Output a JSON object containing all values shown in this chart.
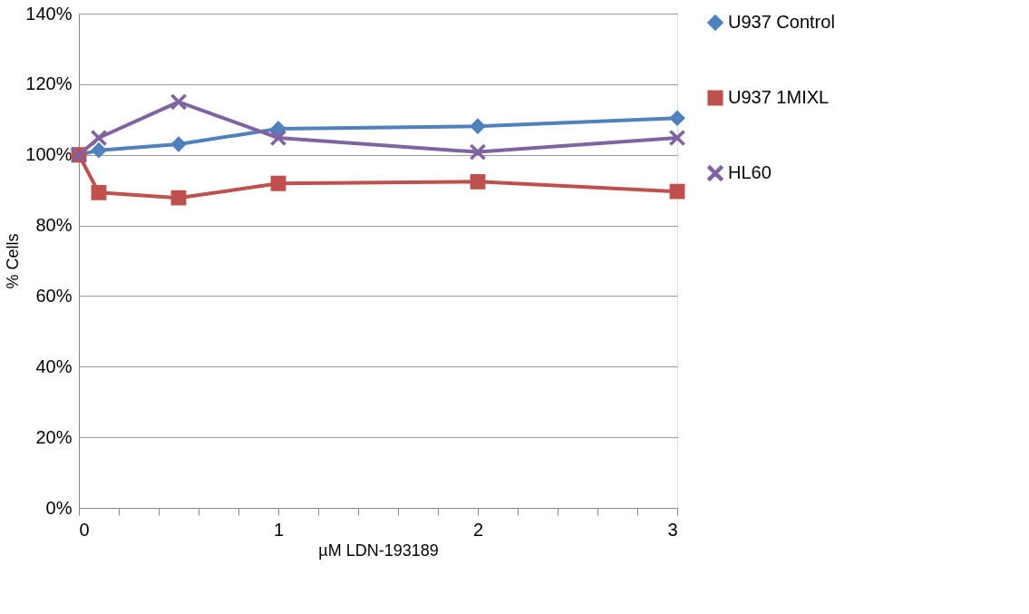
{
  "chart_data": {
    "type": "line",
    "xlabel": "µM LDN-193189",
    "ylabel": "% Cells",
    "x": [
      0,
      0.1,
      0.5,
      1,
      2,
      3
    ],
    "series": [
      {
        "name": "U937 Control",
        "color": "#4f81bd",
        "marker": "diamond",
        "values": [
          100,
          101.3,
          103,
          107.4,
          108.1,
          110.4
        ]
      },
      {
        "name": "U937 1MIXL",
        "color": "#c0504d",
        "marker": "square",
        "values": [
          100,
          89.3,
          87.8,
          91.9,
          92.4,
          89.6
        ]
      },
      {
        "name": "HL60",
        "color": "#8064a2",
        "marker": "cross",
        "values": [
          100,
          104.8,
          115,
          104.8,
          100.8,
          104.8
        ]
      }
    ],
    "xlim": [
      0,
      3
    ],
    "xticks": [
      0,
      {
        "value": 0.2,
        "label": null
      },
      {
        "value": 0.4,
        "label": null
      },
      {
        "value": 0.6,
        "label": null
      },
      {
        "value": 0.8,
        "label": null
      },
      1,
      {
        "value": 1.2,
        "label": null
      },
      {
        "value": 1.4,
        "label": null
      },
      {
        "value": 1.6,
        "label": null
      },
      {
        "value": 1.8,
        "label": null
      },
      2,
      {
        "value": 2.2,
        "label": null
      },
      {
        "value": 2.4,
        "label": null
      },
      {
        "value": 2.6,
        "label": null
      },
      {
        "value": 2.8,
        "label": null
      },
      3
    ],
    "ylim": [
      0,
      140
    ],
    "yticks": [
      {
        "value": 0,
        "label": "0%"
      },
      {
        "value": 20,
        "label": "20%"
      },
      {
        "value": 40,
        "label": "40%"
      },
      {
        "value": 60,
        "label": "60%"
      },
      {
        "value": 80,
        "label": "80%"
      },
      {
        "value": 100,
        "label": "100%"
      },
      {
        "value": 120,
        "label": "120%"
      },
      {
        "value": 140,
        "label": "140%"
      }
    ],
    "grid": "y",
    "legend": "right",
    "line_style": "solid"
  }
}
